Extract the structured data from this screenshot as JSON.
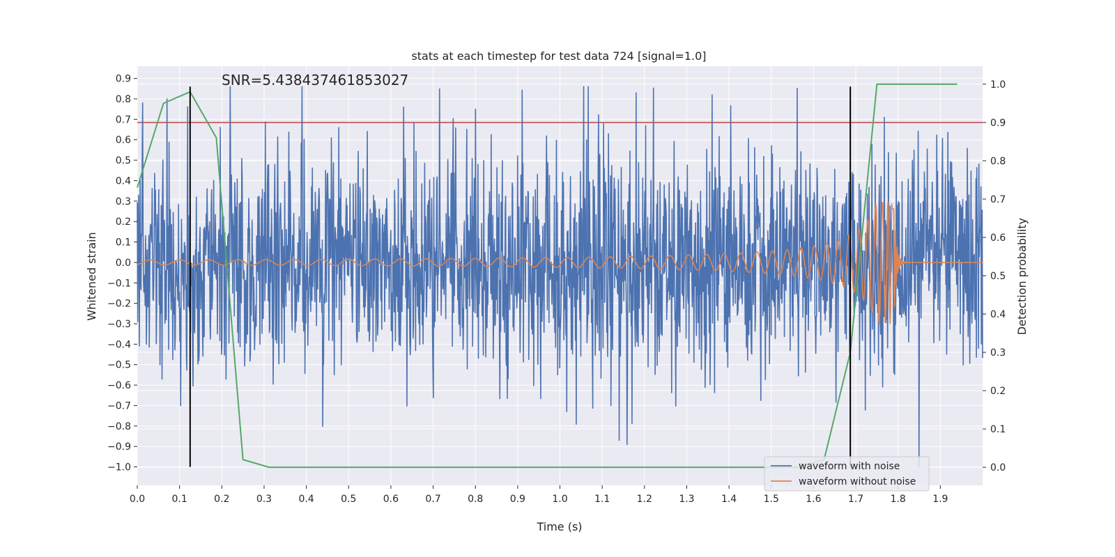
{
  "chart_data": {
    "type": "line",
    "title": "stats at each timestep for test data 724 [signal=1.0]",
    "annotation": "SNR=5.438437461853027",
    "xlabel": "Time (s)",
    "ylabel": "Whitened strain",
    "y2label": "Detection probability",
    "xlim": [
      0.0,
      2.0
    ],
    "ylim": [
      -1.09,
      0.96
    ],
    "y2lim": [
      -0.047,
      1.047
    ],
    "x_ticks": [
      "0.0",
      "0.1",
      "0.2",
      "0.3",
      "0.4",
      "0.5",
      "0.6",
      "0.7",
      "0.8",
      "0.9",
      "1.0",
      "1.1",
      "1.2",
      "1.3",
      "1.4",
      "1.5",
      "1.6",
      "1.7",
      "1.8",
      "1.9"
    ],
    "y_ticks": [
      "0.9",
      "0.8",
      "0.7",
      "0.6",
      "0.5",
      "0.4",
      "0.3",
      "0.2",
      "0.1",
      "0.0",
      "−0.1",
      "−0.2",
      "−0.3",
      "−0.4",
      "−0.5",
      "−0.6",
      "−0.7",
      "−0.8",
      "−0.9",
      "−1.0"
    ],
    "y2_ticks": [
      "1.0",
      "0.9",
      "0.8",
      "0.7",
      "0.6",
      "0.5",
      "0.4",
      "0.3",
      "0.2",
      "0.1",
      "0.0"
    ],
    "grid": true,
    "legend_position": "lower right",
    "series": [
      {
        "name": "waveform with noise",
        "color": "#4c72b0",
        "axis": "left",
        "samples": 2048,
        "x_range": [
          0.0,
          2.0
        ],
        "amplitude_std": 0.27,
        "notable_peaks": [
          [
            0.013,
            0.78
          ],
          [
            0.22,
            0.86
          ],
          [
            0.39,
            0.86
          ],
          [
            0.63,
            0.76
          ],
          [
            0.8,
            0.75
          ],
          [
            1.18,
            0.83
          ],
          [
            1.14,
            -0.87
          ],
          [
            1.85,
            -1.0
          ],
          [
            0.07,
            0.8
          ]
        ]
      },
      {
        "name": "waveform without noise",
        "color": "#dd8452",
        "axis": "left",
        "samples": 2048,
        "x_range": [
          0.0,
          2.0
        ],
        "chirp_merger_time": 1.79,
        "chirp_peak_amplitude": 0.3,
        "early_amplitude": 0.012
      },
      {
        "name": "Detection probability",
        "color": "#55a868",
        "axis": "right",
        "x": [
          0.0,
          0.062,
          0.125,
          0.187,
          0.25,
          0.312,
          0.375,
          0.437,
          0.5,
          0.562,
          0.625,
          0.687,
          0.75,
          0.812,
          0.875,
          0.937,
          1.0,
          1.062,
          1.125,
          1.187,
          1.25,
          1.312,
          1.375,
          1.437,
          1.5,
          1.562,
          1.625,
          1.687,
          1.75,
          1.812,
          1.875,
          1.94
        ],
        "values": [
          0.73,
          0.95,
          0.98,
          0.86,
          0.02,
          0.0,
          0.0,
          0.0,
          0.0,
          0.0,
          0.0,
          0.0,
          0.0,
          0.0,
          0.0,
          0.0,
          0.0,
          0.0,
          0.0,
          0.0,
          0.0,
          0.0,
          0.0,
          0.0,
          0.0,
          0.0,
          0.02,
          0.3,
          1.0,
          1.0,
          1.0,
          1.0
        ]
      }
    ],
    "threshold": {
      "value": 0.9,
      "axis": "right",
      "color": "#c44e52"
    },
    "vlines": [
      {
        "x": 0.125,
        "ymin": -1.0,
        "ymax": 0.86,
        "color": "#000000"
      },
      {
        "x": 1.687,
        "ymin": -1.0,
        "ymax": 0.86,
        "color": "#000000"
      }
    ],
    "colors": {
      "background": "#eaeaf2",
      "grid": "#ffffff",
      "text": "#262626"
    }
  }
}
